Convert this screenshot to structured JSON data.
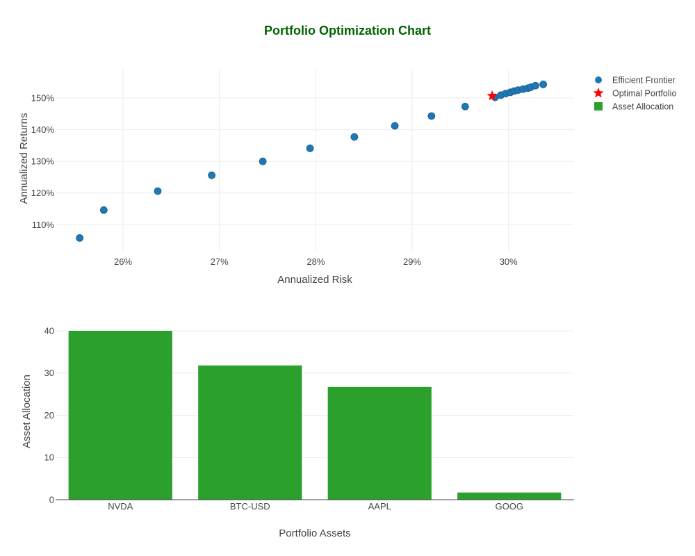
{
  "title": "Portfolio Optimization Chart",
  "colors": {
    "frontier": "#1f77b4",
    "optimal": "#ff0000",
    "bars": "#2ca02c",
    "title": "#006400"
  },
  "legend": {
    "placement": "top-right",
    "items": [
      {
        "label": "Efficient Frontier",
        "symbol": "circle",
        "color": "#1f77b4"
      },
      {
        "label": "Optimal Portfolio",
        "symbol": "star",
        "color": "#ff0000"
      },
      {
        "label": "Asset Allocation",
        "symbol": "square",
        "color": "#2ca02c"
      }
    ]
  },
  "chart_data": [
    {
      "type": "scatter",
      "xlabel": "Annualized Risk",
      "ylabel": "Annualized Returns",
      "xlim": [
        25.3,
        30.68
      ],
      "ylim": [
        101.5,
        159
      ],
      "x_ticks": [
        26,
        27,
        28,
        29,
        30
      ],
      "x_tick_labels": [
        "26%",
        "27%",
        "28%",
        "29%",
        "30%"
      ],
      "y_ticks": [
        110,
        120,
        130,
        140,
        150
      ],
      "y_tick_labels": [
        "110%",
        "120%",
        "130%",
        "140%",
        "150%"
      ],
      "grid": true,
      "series": [
        {
          "name": "Efficient Frontier",
          "marker": "circle",
          "points": [
            [
              25.55,
              105.8
            ],
            [
              25.8,
              114.6
            ],
            [
              26.36,
              120.6
            ],
            [
              26.92,
              125.6
            ],
            [
              27.45,
              130.0
            ],
            [
              27.94,
              134.1
            ],
            [
              28.4,
              137.7
            ],
            [
              28.82,
              141.2
            ],
            [
              29.2,
              144.3
            ],
            [
              29.55,
              147.3
            ],
            [
              29.86,
              150.2
            ],
            [
              29.92,
              150.9
            ],
            [
              29.97,
              151.4
            ],
            [
              30.02,
              151.8
            ],
            [
              30.06,
              152.2
            ],
            [
              30.1,
              152.5
            ],
            [
              30.15,
              152.8
            ],
            [
              30.2,
              153.1
            ],
            [
              30.23,
              153.4
            ],
            [
              30.28,
              153.9
            ],
            [
              30.36,
              154.3
            ]
          ]
        },
        {
          "name": "Optimal Portfolio",
          "marker": "star",
          "points": [
            [
              29.83,
              150.7
            ]
          ]
        }
      ]
    },
    {
      "type": "bar",
      "xlabel": "Portfolio Assets",
      "ylabel": "Asset Allocation",
      "categories": [
        "NVDA",
        "BTC-USD",
        "AAPL",
        "GOOG"
      ],
      "series": [
        {
          "name": "Asset Allocation",
          "values": [
            40,
            31.8,
            26.7,
            1.7
          ]
        }
      ],
      "ylim": [
        0,
        42.3
      ],
      "y_ticks": [
        0,
        10,
        20,
        30,
        40
      ],
      "y_tick_labels": [
        "0",
        "10",
        "20",
        "30",
        "40"
      ],
      "grid": true
    }
  ]
}
